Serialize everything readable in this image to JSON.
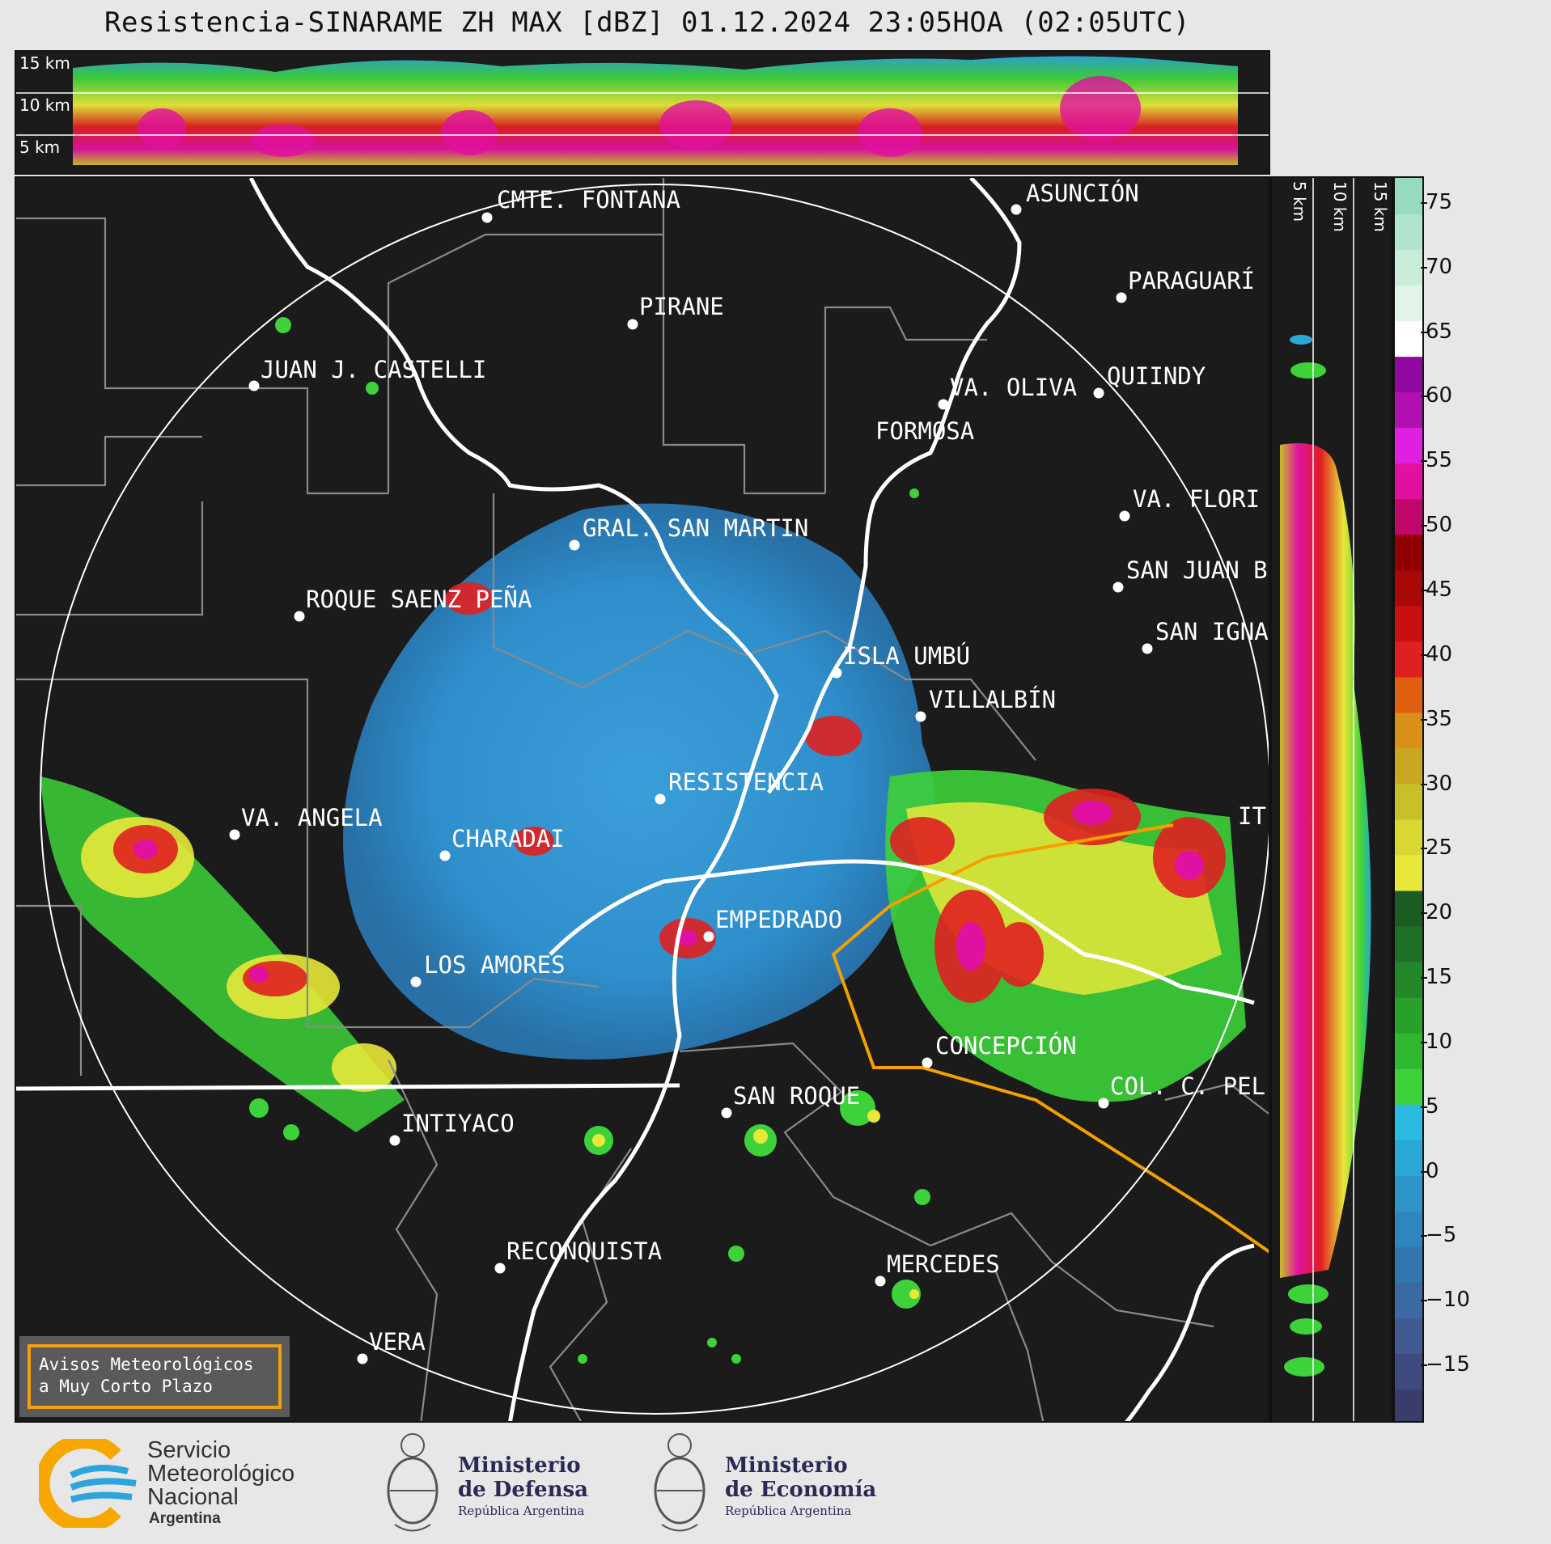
{
  "title": "Resistencia-SINARAME ZH MAX [dBZ] 01.12.2024 23:05HOA (02:05UTC)",
  "top_section_labels": [
    "15 km",
    "10 km",
    "5 km"
  ],
  "right_section_labels": [
    "5 km",
    "10 km",
    "15 km"
  ],
  "colorbar": {
    "ticks": [
      "75",
      "70",
      "65",
      "60",
      "55",
      "50",
      "45",
      "40",
      "35",
      "30",
      "25",
      "20",
      "15",
      "10",
      "5",
      "0",
      "−5",
      "−10",
      "−15"
    ],
    "colors": [
      "#3a3d6b",
      "#3e4a80",
      "#405a92",
      "#3b6aa3",
      "#3476b0",
      "#2f86bd",
      "#2d95c8",
      "#2aa8d6",
      "#2bbbe0",
      "#3dd23a",
      "#2fb830",
      "#28a02a",
      "#23882a",
      "#1f7026",
      "#1a5c22",
      "#e8e83a",
      "#d8d832",
      "#c8c028",
      "#c8a820",
      "#d89018",
      "#e06010",
      "#e02020",
      "#c81010",
      "#a80808",
      "#900000",
      "#c0086a",
      "#e010a0",
      "#e020e0",
      "#b010b0",
      "#9008a0",
      "#ffffff",
      "#e0f4ea",
      "#c8ecd8",
      "#b0e4cc",
      "#98dcc0"
    ],
    "accent_wall": "#ffffff"
  },
  "cities": [
    {
      "name": "CMTE. FONTANA"
    },
    {
      "name": "ASUNCIÓN"
    },
    {
      "name": "PIRANE"
    },
    {
      "name": "PARAGUARÍ"
    },
    {
      "name": "JUAN J. CASTELLI"
    },
    {
      "name": "VA. OLIVA"
    },
    {
      "name": "QUIINDY"
    },
    {
      "name": "FORMOSA"
    },
    {
      "name": "VA. FLORI"
    },
    {
      "name": "GRAL. SAN MARTIN"
    },
    {
      "name": "SAN JUAN B"
    },
    {
      "name": "ROQUE SAENZ PEÑA"
    },
    {
      "name": "SAN IGNA"
    },
    {
      "name": "ISLA UMBÚ"
    },
    {
      "name": "VILLALBÍN"
    },
    {
      "name": "RESISTENCIA"
    },
    {
      "name": "VA. ANGELA"
    },
    {
      "name": "CHARADAI"
    },
    {
      "name": "IT"
    },
    {
      "name": "EMPEDRADO"
    },
    {
      "name": "LOS AMORES"
    },
    {
      "name": "CONCEPCIÓN"
    },
    {
      "name": "SAN ROQUE"
    },
    {
      "name": "COL. C. PEL"
    },
    {
      "name": "INTIYACO"
    },
    {
      "name": "RECONQUISTA"
    },
    {
      "name": "MERCEDES"
    },
    {
      "name": "VERA"
    }
  ],
  "avisos": {
    "line1": "Avisos Meteorológicos",
    "line2": "a Muy Corto Plazo"
  },
  "footer": {
    "smn": {
      "line1": "Servicio",
      "line2": "Meteorológico",
      "line3": "Nacional",
      "line4": "Argentina"
    },
    "defensa": {
      "line1": "Ministerio",
      "line2": "de Defensa",
      "line3": "República Argentina"
    },
    "economia": {
      "line1": "Ministerio",
      "line2": "de Economía",
      "line3": "República Argentina"
    }
  }
}
